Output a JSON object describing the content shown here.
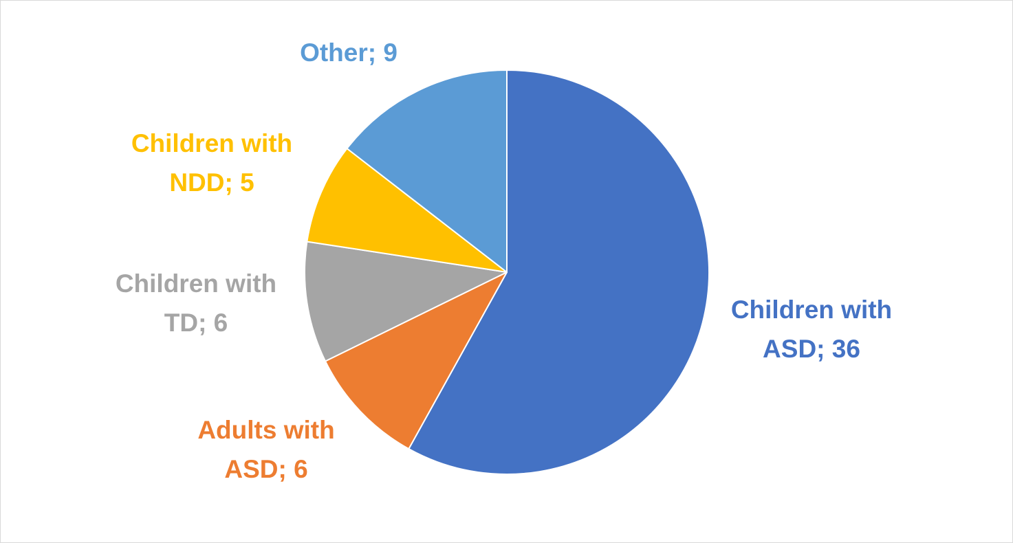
{
  "chart_data": {
    "type": "pie",
    "title": "",
    "start": "12 o'clock",
    "direction": "clockwise",
    "slice_border_color": "#ffffff",
    "slices": [
      {
        "name_lines": [
          "Children with",
          "ASD; 36"
        ],
        "value": 36,
        "color": "#4472C4"
      },
      {
        "name_lines": [
          "Adults with",
          "ASD; 6"
        ],
        "value": 6,
        "color": "#ED7D31"
      },
      {
        "name_lines": [
          "Children with",
          "TD; 6"
        ],
        "value": 6,
        "color": "#A5A5A5"
      },
      {
        "name_lines": [
          "Children with",
          "NDD; 5"
        ],
        "value": 5,
        "color": "#FFC000"
      },
      {
        "name_lines": [
          "Other; 9"
        ],
        "value": 9,
        "color": "#5B9BD5"
      }
    ]
  }
}
